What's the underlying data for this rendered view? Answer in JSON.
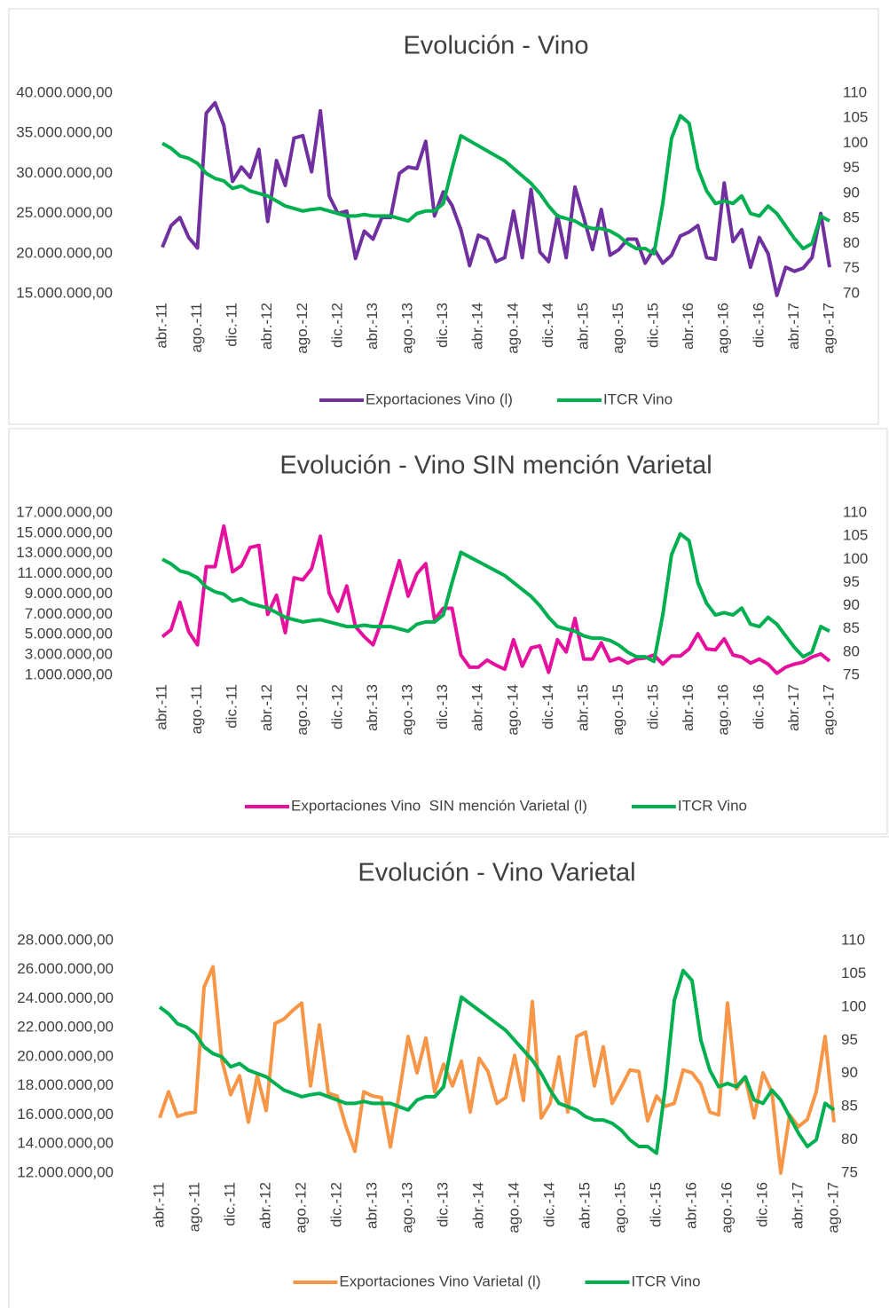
{
  "chart_data": [
    {
      "type": "line",
      "title": "Evolución - Vino",
      "categories": [
        "abr.-11",
        null,
        null,
        null,
        "ago.-11",
        null,
        null,
        null,
        "dic.-11",
        null,
        null,
        null,
        "abr.-12",
        null,
        null,
        null,
        "ago.-12",
        null,
        null,
        null,
        "dic.-12",
        null,
        null,
        null,
        "abr.-13",
        null,
        null,
        null,
        "ago.-13",
        null,
        null,
        null,
        "dic.-13",
        null,
        null,
        null,
        "abr.-14",
        null,
        null,
        null,
        "ago.-14",
        null,
        null,
        null,
        "dic.-14",
        null,
        null,
        null,
        "abr.-15",
        null,
        null,
        null,
        "ago.-15",
        null,
        null,
        null,
        "dic.-15",
        null,
        null,
        null,
        "abr.-16",
        null,
        null,
        null,
        "ago.-16",
        null,
        null,
        null,
        "dic.-16",
        null,
        null,
        null,
        "abr.-17",
        null,
        null,
        null,
        "ago.-17"
      ],
      "series": [
        {
          "name": "Exportaciones Vino (l)",
          "color": "#7030a0",
          "values": [
            20800000,
            23500000,
            24500000,
            22000000,
            20700000,
            37500000,
            38800000,
            36000000,
            29000000,
            30800000,
            29500000,
            33000000,
            24000000,
            31600000,
            28500000,
            34400000,
            34700000,
            30200000,
            37800000,
            27200000,
            25000000,
            25300000,
            19400000,
            22800000,
            21800000,
            24500000,
            24500000,
            30000000,
            30800000,
            30600000,
            34000000,
            24700000,
            27700000,
            26000000,
            23000000,
            18500000,
            22300000,
            21800000,
            19000000,
            19500000,
            25300000,
            19500000,
            28000000,
            20200000,
            19000000,
            24800000,
            19500000,
            28300000,
            24500000,
            20500000,
            25500000,
            19800000,
            20500000,
            21800000,
            21800000,
            18800000,
            20600000,
            18800000,
            19800000,
            22200000,
            22700000,
            23500000,
            19500000,
            19300000,
            28800000,
            21500000,
            23000000,
            18300000,
            22000000,
            20000000,
            14800000,
            18300000,
            17800000,
            18200000,
            19500000,
            25000000,
            18300000
          ]
        },
        {
          "name": "ITCR Vino",
          "color": "#00b050",
          "axis": "y2",
          "values": [
            100,
            99,
            97.5,
            97,
            96,
            94,
            93,
            92.5,
            91,
            91.5,
            90.5,
            90,
            89.5,
            88.5,
            87.5,
            87,
            86.5,
            86.8,
            87,
            86.5,
            86,
            85.5,
            85.5,
            85.8,
            85.5,
            85.5,
            85.5,
            85,
            84.5,
            86,
            86.5,
            86.5,
            88,
            95,
            101.5,
            100.5,
            99.5,
            98.5,
            97.5,
            96.5,
            95,
            93.5,
            92,
            90,
            87.5,
            85.5,
            85,
            84.5,
            83.5,
            83,
            83,
            82.5,
            81.5,
            80,
            79,
            79,
            78,
            88,
            101,
            105.5,
            104,
            95,
            90.5,
            88,
            88.5,
            88,
            89.5,
            86,
            85.5,
            87.5,
            86,
            83.5,
            81,
            79,
            80,
            85.5,
            84.5
          ]
        }
      ],
      "ylim": [
        15000000,
        40000000
      ],
      "yticks": [
        {
          "value": 15000000,
          "label": "15.000.000,00"
        },
        {
          "value": 20000000,
          "label": "20.000.000,00"
        },
        {
          "value": 25000000,
          "label": "25.000.000,00"
        },
        {
          "value": 30000000,
          "label": "30.000.000,00"
        },
        {
          "value": 35000000,
          "label": "35.000.000,00"
        },
        {
          "value": 40000000,
          "label": "40.000.000,00"
        }
      ],
      "y2lim": [
        70,
        110
      ],
      "y2ticks": [
        70,
        75,
        80,
        85,
        90,
        95,
        100,
        105,
        110
      ],
      "grid": false,
      "legend": "bottom"
    },
    {
      "type": "line",
      "title": "Evolución - Vino SIN mención Varietal",
      "categories": [
        "abr.-11",
        null,
        null,
        null,
        "ago.-11",
        null,
        null,
        null,
        "dic.-11",
        null,
        null,
        null,
        "abr.-12",
        null,
        null,
        null,
        "ago.-12",
        null,
        null,
        null,
        "dic.-12",
        null,
        null,
        null,
        "abr.-13",
        null,
        null,
        null,
        "ago.-13",
        null,
        null,
        null,
        "dic.-13",
        null,
        null,
        null,
        "abr.-14",
        null,
        null,
        null,
        "ago.-14",
        null,
        null,
        null,
        "dic.-14",
        null,
        null,
        null,
        "abr.-15",
        null,
        null,
        null,
        "ago.-15",
        null,
        null,
        null,
        "dic.-15",
        null,
        null,
        null,
        "abr.-16",
        null,
        null,
        null,
        "ago.-16",
        null,
        null,
        null,
        "dic.-16",
        null,
        null,
        null,
        "abr.-17",
        null,
        null,
        null,
        "ago.-17"
      ],
      "series": [
        {
          "name": "Exportaciones Vino  SIN mención Varietal (l)",
          "color": "#e6109e",
          "values": [
            4800000,
            5500000,
            8200000,
            5300000,
            4000000,
            11700000,
            11700000,
            15700000,
            11200000,
            11800000,
            13600000,
            13800000,
            7000000,
            8900000,
            5200000,
            10600000,
            10400000,
            11500000,
            14700000,
            9100000,
            7300000,
            9800000,
            5800000,
            4800000,
            4000000,
            6400000,
            9400000,
            12300000,
            8800000,
            11000000,
            12000000,
            6500000,
            7600000,
            7600000,
            3000000,
            1800000,
            1800000,
            2500000,
            2000000,
            1600000,
            4500000,
            1900000,
            3700000,
            3900000,
            1300000,
            4500000,
            3300000,
            6600000,
            2600000,
            2600000,
            4200000,
            2400000,
            2700000,
            2200000,
            2600000,
            2700000,
            3000000,
            2100000,
            2900000,
            2900000,
            3600000,
            5100000,
            3600000,
            3500000,
            4600000,
            3000000,
            2800000,
            2200000,
            2600000,
            2100000,
            1200000,
            1800000,
            2100000,
            2300000,
            2800000,
            3100000,
            2400000
          ]
        },
        {
          "name": "ITCR Vino",
          "color": "#00b050",
          "axis": "y2",
          "values": [
            100,
            99,
            97.5,
            97,
            96,
            94,
            93,
            92.5,
            91,
            91.5,
            90.5,
            90,
            89.5,
            88.5,
            87.5,
            87,
            86.5,
            86.8,
            87,
            86.5,
            86,
            85.5,
            85.5,
            85.8,
            85.5,
            85.5,
            85.5,
            85,
            84.5,
            86,
            86.5,
            86.5,
            88,
            95,
            101.5,
            100.5,
            99.5,
            98.5,
            97.5,
            96.5,
            95,
            93.5,
            92,
            90,
            87.5,
            85.5,
            85,
            84.5,
            83.5,
            83,
            83,
            82.5,
            81.5,
            80,
            79,
            79,
            78,
            88,
            101,
            105.5,
            104,
            95,
            90.5,
            88,
            88.5,
            88,
            89.5,
            86,
            85.5,
            87.5,
            86,
            83.5,
            81,
            79,
            80,
            85.5,
            84.5
          ]
        }
      ],
      "ylim": [
        1000000,
        17000000
      ],
      "yticks": [
        {
          "value": 1000000,
          "label": "1.000.000,00"
        },
        {
          "value": 3000000,
          "label": "3.000.000,00"
        },
        {
          "value": 5000000,
          "label": "5.000.000,00"
        },
        {
          "value": 7000000,
          "label": "7.000.000,00"
        },
        {
          "value": 9000000,
          "label": "9.000.000,00"
        },
        {
          "value": 11000000,
          "label": "11.000.000,00"
        },
        {
          "value": 13000000,
          "label": "13.000.000,00"
        },
        {
          "value": 15000000,
          "label": "15.000.000,00"
        },
        {
          "value": 17000000,
          "label": "17.000.000,00"
        }
      ],
      "y2lim": [
        75,
        110
      ],
      "y2ticks": [
        75,
        80,
        85,
        90,
        95,
        100,
        105,
        110
      ],
      "grid": false,
      "legend": "bottom"
    },
    {
      "type": "line",
      "title": "Evolución - Vino Varietal",
      "categories": [
        "abr.-11",
        null,
        null,
        null,
        "ago.-11",
        null,
        null,
        null,
        "dic.-11",
        null,
        null,
        null,
        "abr.-12",
        null,
        null,
        null,
        "ago.-12",
        null,
        null,
        null,
        "dic.-12",
        null,
        null,
        null,
        "abr.-13",
        null,
        null,
        null,
        "ago.-13",
        null,
        null,
        null,
        "dic.-13",
        null,
        null,
        null,
        "abr.-14",
        null,
        null,
        null,
        "ago.-14",
        null,
        null,
        null,
        "dic.-14",
        null,
        null,
        null,
        "abr.-15",
        null,
        null,
        null,
        "ago.-15",
        null,
        null,
        null,
        "dic.-15",
        null,
        null,
        null,
        "abr.-16",
        null,
        null,
        null,
        "ago.-16",
        null,
        null,
        null,
        "dic.-16",
        null,
        null,
        null,
        "abr.-17",
        null,
        null,
        null,
        "ago.-17"
      ],
      "series": [
        {
          "name": "Exportaciones Vino Varietal (l)",
          "color": "#f79646",
          "values": [
            15800000,
            17600000,
            15900000,
            16100000,
            16200000,
            24800000,
            26200000,
            19800000,
            17400000,
            18700000,
            15500000,
            18700000,
            16300000,
            22300000,
            22600000,
            23200000,
            23700000,
            18000000,
            22200000,
            17500000,
            17300000,
            15200000,
            13500000,
            17600000,
            17300000,
            17200000,
            13800000,
            17500000,
            21400000,
            18900000,
            21300000,
            17600000,
            19500000,
            18000000,
            19700000,
            16200000,
            19900000,
            19000000,
            16800000,
            17200000,
            20100000,
            17000000,
            23800000,
            15800000,
            16800000,
            20000000,
            16200000,
            21400000,
            21700000,
            18000000,
            20700000,
            16800000,
            17900000,
            19100000,
            19000000,
            15600000,
            17300000,
            16600000,
            16800000,
            19100000,
            18900000,
            18100000,
            16200000,
            16000000,
            23700000,
            17800000,
            18600000,
            15800000,
            18900000,
            17600000,
            12000000,
            16000000,
            15200000,
            15700000,
            17600000,
            21400000,
            15500000
          ]
        },
        {
          "name": "ITCR Vino",
          "color": "#00b050",
          "axis": "y2",
          "values": [
            100,
            99,
            97.5,
            97,
            96,
            94,
            93,
            92.5,
            91,
            91.5,
            90.5,
            90,
            89.5,
            88.5,
            87.5,
            87,
            86.5,
            86.8,
            87,
            86.5,
            86,
            85.5,
            85.5,
            85.8,
            85.5,
            85.5,
            85.5,
            85,
            84.5,
            86,
            86.5,
            86.5,
            88,
            95,
            101.5,
            100.5,
            99.5,
            98.5,
            97.5,
            96.5,
            95,
            93.5,
            92,
            90,
            87.5,
            85.5,
            85,
            84.5,
            83.5,
            83,
            83,
            82.5,
            81.5,
            80,
            79,
            79,
            78,
            88,
            101,
            105.5,
            104,
            95,
            90.5,
            88,
            88.5,
            88,
            89.5,
            86,
            85.5,
            87.5,
            86,
            83.5,
            81,
            79,
            80,
            85.5,
            84.5
          ]
        }
      ],
      "ylim": [
        12000000,
        28000000
      ],
      "yticks": [
        {
          "value": 12000000,
          "label": "12.000.000,00"
        },
        {
          "value": 14000000,
          "label": "14.000.000,00"
        },
        {
          "value": 16000000,
          "label": "16.000.000,00"
        },
        {
          "value": 18000000,
          "label": "18.000.000,00"
        },
        {
          "value": 20000000,
          "label": "20.000.000,00"
        },
        {
          "value": 22000000,
          "label": "22.000.000,00"
        },
        {
          "value": 24000000,
          "label": "24.000.000,00"
        },
        {
          "value": 26000000,
          "label": "26.000.000,00"
        },
        {
          "value": 28000000,
          "label": "28.000.000,00"
        }
      ],
      "y2lim": [
        75,
        110
      ],
      "y2ticks": [
        75,
        80,
        85,
        90,
        95,
        100,
        105,
        110
      ],
      "grid": false,
      "legend": "bottom"
    }
  ]
}
